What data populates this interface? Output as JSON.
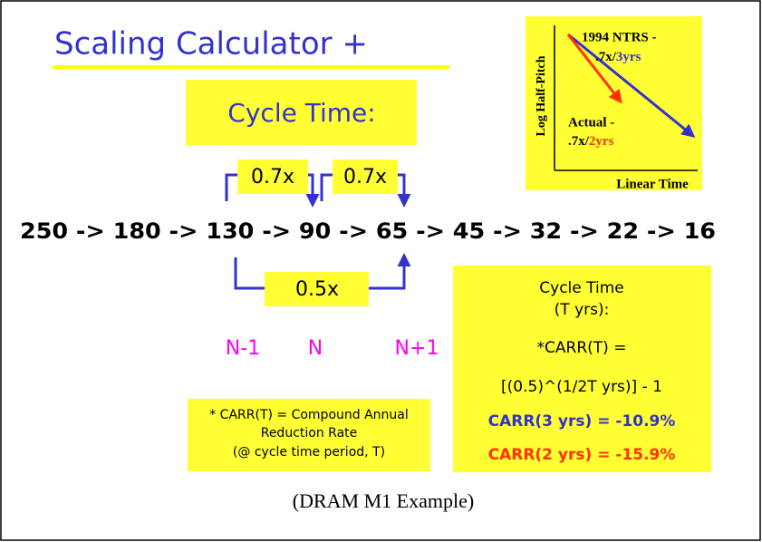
{
  "title": "Scaling Calculator +",
  "subtitle": "Cycle Time:",
  "inset": {
    "y_axis_label": "Log Half-Pitch",
    "x_axis_label": "Linear Time",
    "ntrs_label": "1994 NTRS -",
    "ntrs_rate": ".7x/",
    "ntrs_period": "3yrs",
    "actual_label": "Actual -",
    "actual_rate": ".7x/",
    "actual_period": "2yrs"
  },
  "sequence": "250 -> 180 -> 130 -> 90 -> 65 -> 45 -> 32 -> 22 -> 16",
  "factors": [
    "0.7x",
    "0.7x",
    "0.5x"
  ],
  "nodes": [
    "N-1",
    "N",
    "N+1"
  ],
  "footnote": [
    "* CARR(T) = Compound Annual",
    "Reduction Rate",
    "(@ cycle time period, T)"
  ],
  "formula_box": {
    "lines": [
      "Cycle Time",
      "(T yrs):",
      "*CARR(T) =",
      "[(0.5)^(1/2T yrs)] - 1"
    ],
    "result_3yrs": "CARR(3 yrs) = -10.9%",
    "result_2yrs": "CARR(2 yrs) = -15.9%"
  },
  "caption": "(DRAM M1 Example)"
}
